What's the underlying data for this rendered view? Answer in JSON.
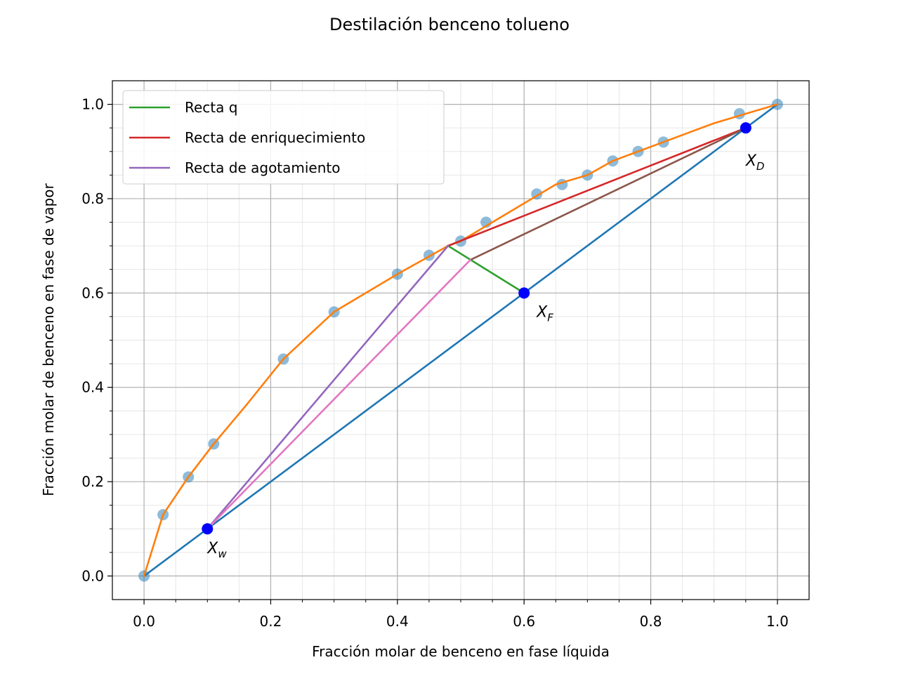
{
  "chart_data": {
    "type": "line",
    "title": "Destilación benceno tolueno",
    "xlabel": "Fracción molar de benceno en fase líquida",
    "ylabel": "Fracción molar de benceno en fase de vapor",
    "xlim": [
      -0.05,
      1.05
    ],
    "ylim": [
      -0.05,
      1.05
    ],
    "xticks": [
      0.0,
      0.2,
      0.4,
      0.6,
      0.8,
      1.0
    ],
    "yticks": [
      0.0,
      0.2,
      0.4,
      0.6,
      0.8,
      1.0
    ],
    "xtick_labels": [
      "0.0",
      "0.2",
      "0.4",
      "0.6",
      "0.8",
      "1.0"
    ],
    "ytick_labels": [
      "0.0",
      "0.2",
      "0.4",
      "0.6",
      "0.8",
      "1.0"
    ],
    "grid": true,
    "legend_position": "top-left",
    "equilibrium_points": {
      "x": [
        0.0,
        0.03,
        0.07,
        0.11,
        0.22,
        0.3,
        0.4,
        0.45,
        0.5,
        0.54,
        0.62,
        0.66,
        0.7,
        0.74,
        0.78,
        0.82,
        0.94,
        1.0
      ],
      "y": [
        0.0,
        0.13,
        0.21,
        0.28,
        0.46,
        0.56,
        0.64,
        0.68,
        0.71,
        0.75,
        0.81,
        0.83,
        0.85,
        0.88,
        0.9,
        0.92,
        0.98,
        1.0
      ],
      "color": "#1f77b4"
    },
    "series": [
      {
        "x": [
          0.0,
          1.0
        ],
        "y": [
          0.0,
          1.0
        ],
        "color": "#1f77b4"
      },
      {
        "x": [
          0.0,
          0.03,
          0.07,
          0.11,
          0.16,
          0.22,
          0.3,
          0.4,
          0.48,
          0.5,
          0.55,
          0.6,
          0.65,
          0.7,
          0.74,
          0.78,
          0.82,
          0.9,
          0.95,
          1.0
        ],
        "y": [
          0.0,
          0.13,
          0.21,
          0.28,
          0.36,
          0.46,
          0.56,
          0.64,
          0.7,
          0.71,
          0.75,
          0.79,
          0.83,
          0.85,
          0.88,
          0.9,
          0.92,
          0.96,
          0.98,
          1.0
        ],
        "color": "#ff7f0e"
      },
      {
        "name": "Recta q",
        "x": [
          0.6,
          0.48
        ],
        "y": [
          0.6,
          0.7
        ],
        "color": "#2ca02c"
      },
      {
        "name": "Recta de enriquecimiento",
        "x": [
          0.95,
          0.48
        ],
        "y": [
          0.95,
          0.7
        ],
        "color": "#d62728"
      },
      {
        "name": "Recta de agotamiento",
        "x": [
          0.1,
          0.48
        ],
        "y": [
          0.1,
          0.7
        ],
        "color": "#9467bd"
      },
      {
        "x": [
          0.95,
          0.515
        ],
        "y": [
          0.95,
          0.67
        ],
        "color": "#8c564b"
      },
      {
        "x": [
          0.1,
          0.515
        ],
        "y": [
          0.1,
          0.67
        ],
        "color": "#e377c2"
      }
    ],
    "key_points": [
      {
        "label": "X",
        "sub": "w",
        "x": 0.1,
        "y": 0.1
      },
      {
        "label": "X",
        "sub": "F",
        "x": 0.6,
        "y": 0.6
      },
      {
        "label": "X",
        "sub": "D",
        "x": 0.95,
        "y": 0.95
      }
    ],
    "key_point_color": "#0000ff"
  }
}
